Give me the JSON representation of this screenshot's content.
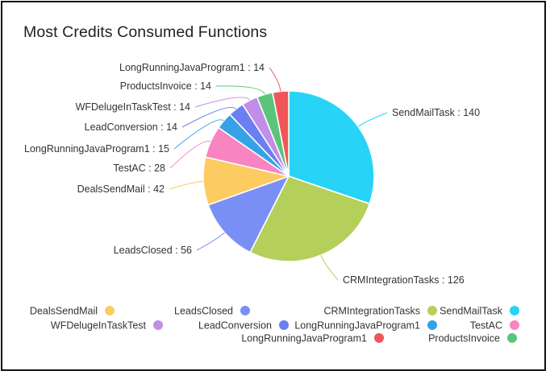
{
  "chart_data": {
    "type": "pie",
    "title": "Most Credits Consumed Functions",
    "slices": [
      {
        "label": "SendMailTask",
        "value": 140,
        "color": "#27d4f7"
      },
      {
        "label": "CRMIntegrationTasks",
        "value": 126,
        "color": "#b5d05a"
      },
      {
        "label": "LeadsClosed",
        "value": 56,
        "color": "#7a8ff6"
      },
      {
        "label": "DealsSendMail",
        "value": 42,
        "color": "#fccb62"
      },
      {
        "label": "TestAC",
        "value": 28,
        "color": "#f884c0"
      },
      {
        "label": "LongRunningJavaProgram1",
        "value": 15,
        "color": "#35a2e8"
      },
      {
        "label": "LeadConversion",
        "value": 14,
        "color": "#6a7ff0"
      },
      {
        "label": "WFDelugeInTaskTest",
        "value": 14,
        "color": "#c18de8"
      },
      {
        "label": "ProductsInvoice",
        "value": 14,
        "color": "#5cc47a"
      },
      {
        "label": "LongRunningJavaProgram1",
        "value": 14,
        "color": "#f0555a"
      }
    ],
    "legend": {
      "placement": "bottom",
      "rows": [
        [
          "DealsSendMail",
          "LeadsClosed",
          "CRMIntegrationTasks",
          "SendMailTask"
        ],
        [
          "WFDelugeInTaskTest",
          "LeadConversion",
          "LongRunningJavaProgram1",
          "TestAC"
        ],
        [
          "LongRunningJavaProgram1",
          "ProductsInvoice"
        ]
      ],
      "colors": [
        [
          "#fccb62",
          "#7a8ff6",
          "#b5d05a",
          "#27d4f7"
        ],
        [
          "#c18de8",
          "#6a7ff0",
          "#35a2e8",
          "#f884c0"
        ],
        [
          "#f0555a",
          "#5cc47a"
        ]
      ]
    }
  }
}
